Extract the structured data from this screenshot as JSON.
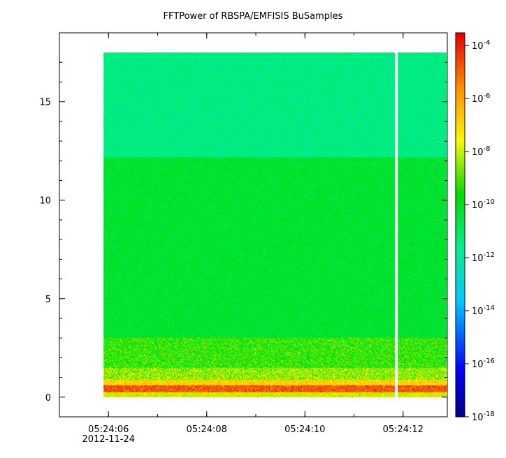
{
  "chart_data": {
    "type": "heatmap",
    "title": "FFTPower of RBSPA/EMFISIS  BuSamples",
    "xlabel": "",
    "ylabel": "",
    "x_tick_labels": [
      "05:24:06",
      "05:24:08",
      "05:24:10",
      "05:24:12"
    ],
    "x_date_label": "2012-11-24",
    "x_range_seconds": [
      "05:24:05",
      "05:24:12.9"
    ],
    "data_start": "05:24:05.9",
    "data_end": "05:24:12.9",
    "gap_at": "05:24:11.85",
    "y_ticks": [
      0,
      5,
      10,
      15
    ],
    "ylim": [
      -1,
      18.5
    ],
    "data_y_range": [
      0,
      17.5
    ],
    "colorbar": {
      "scale": "log",
      "range": [
        1e-18,
        0.0003
      ],
      "tick_exponents": [
        -4,
        -6,
        -8,
        -10,
        -12,
        -14,
        -16,
        -18
      ],
      "tick_labels": [
        "10",
        "10",
        "10",
        "10",
        "10",
        "10",
        "10",
        "10"
      ],
      "tick_superscripts": [
        "-4",
        "-6",
        "-8",
        "-10",
        "-12",
        "-14",
        "-16",
        "-18"
      ]
    },
    "bands": [
      {
        "y_from": 12.2,
        "y_to": 17.5,
        "level_exp": -11.5
      },
      {
        "y_from": 3.0,
        "y_to": 12.2,
        "level_exp": -10.3
      },
      {
        "y_from": 1.5,
        "y_to": 3.0,
        "level_exp": -9.3
      },
      {
        "y_from": 0.9,
        "y_to": 1.5,
        "level_exp": -8.4
      },
      {
        "y_from": 0.6,
        "y_to": 0.9,
        "level_exp": -7.0
      },
      {
        "y_from": 0.25,
        "y_to": 0.6,
        "level_exp": -4.8
      },
      {
        "y_from": 0.0,
        "y_to": 0.25,
        "level_exp": -7.6
      }
    ]
  }
}
